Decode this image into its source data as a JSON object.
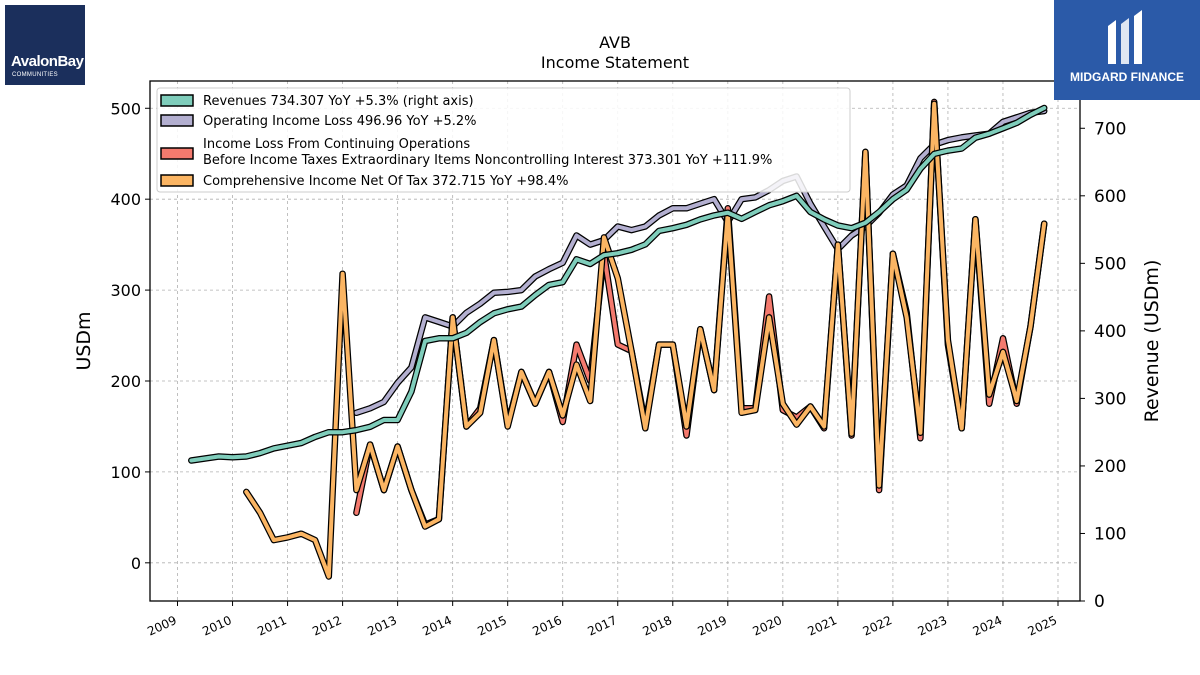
{
  "logos": {
    "left_text": "AvalonBay",
    "left_sub": "COMMUNITIES",
    "right_text": "MIDGARD FINANCE"
  },
  "chart_data": {
    "type": "line",
    "title": "AVB",
    "subtitle": "Income Statement",
    "ylabel": "USDm",
    "ylabel_right": "Revenue (USDm)",
    "ylim": [
      -42,
      530
    ],
    "ylim_right": [
      0,
      770
    ],
    "yticks": [
      0,
      100,
      200,
      300,
      400,
      500
    ],
    "yticks_right": [
      0,
      100,
      200,
      300,
      400,
      500,
      600,
      700
    ],
    "xlim": [
      2008.5,
      2025.4
    ],
    "xticks": [
      "2009",
      "2010",
      "2011",
      "2012",
      "2013",
      "2014",
      "2015",
      "2016",
      "2017",
      "2018",
      "2019",
      "2020",
      "2021",
      "2022",
      "2023",
      "2024",
      "2025"
    ],
    "grid": true,
    "legend_position": "top-left",
    "colors": {
      "revenues": "#7fcdbb",
      "operating": "#b3afd0",
      "pretax": "#f47a6e",
      "comprehensive": "#fbb563"
    },
    "legend": [
      {
        "key": "revenues",
        "text": "Revenues  734.307 YoY +5.3% (right axis)"
      },
      {
        "key": "operating",
        "text": "Operating Income Loss  496.96 YoY +5.2%"
      },
      {
        "key": "pretax",
        "text": "Income Loss From Continuing Operations",
        "text2": "Before Income Taxes Extraordinary Items Noncontrolling Interest  373.301 YoY +111.9%"
      },
      {
        "key": "comprehensive",
        "text": "Comprehensive Income Net Of Tax  372.715 YoY +98.4%"
      }
    ],
    "series": [
      {
        "key": "operating",
        "axis": "left",
        "x": [
          2012.25,
          2012.5,
          2012.75,
          2013.0,
          2013.25,
          2013.5,
          2013.75,
          2014.0,
          2014.25,
          2014.5,
          2014.75,
          2015.0,
          2015.25,
          2015.5,
          2015.75,
          2016.0,
          2016.25,
          2016.5,
          2016.75,
          2017.0,
          2017.25,
          2017.5,
          2017.75,
          2018.0,
          2018.25,
          2018.5,
          2018.75,
          2019.0,
          2019.25,
          2019.5,
          2019.75,
          2020.0,
          2020.25,
          2020.5,
          2020.75,
          2021.0,
          2021.25,
          2021.5,
          2021.75,
          2022.0,
          2022.25,
          2022.5,
          2022.75,
          2023.0,
          2023.25,
          2023.5,
          2023.75,
          2024.0,
          2024.25,
          2024.5,
          2024.75
        ],
        "y": [
          165,
          170,
          177,
          198,
          215,
          270,
          265,
          260,
          275,
          285,
          297,
          298,
          300,
          315,
          323,
          330,
          360,
          350,
          355,
          370,
          366,
          370,
          382,
          390,
          390,
          395,
          400,
          375,
          400,
          402,
          410,
          420,
          425,
          395,
          370,
          345,
          360,
          370,
          385,
          405,
          415,
          445,
          460,
          465,
          468,
          470,
          472,
          485,
          490,
          495,
          497
        ]
      },
      {
        "key": "pretax",
        "axis": "left",
        "x": [
          2012.25,
          2012.5,
          2012.75,
          2013.0,
          2013.25,
          2013.5,
          2013.75,
          2014.0,
          2014.25,
          2014.5,
          2014.75,
          2015.0,
          2015.25,
          2015.5,
          2015.75,
          2016.0,
          2016.25,
          2016.5,
          2016.75,
          2017.0,
          2017.25,
          2017.5,
          2017.75,
          2018.0,
          2018.25,
          2018.5,
          2018.75,
          2019.0,
          2019.25,
          2019.5,
          2019.75,
          2020.0,
          2020.25,
          2020.5,
          2020.75,
          2021.0,
          2021.25,
          2021.5,
          2021.75,
          2022.0,
          2022.25,
          2022.5,
          2022.75,
          2023.0,
          2023.25,
          2023.5,
          2023.75,
          2024.0,
          2024.25,
          2024.5,
          2024.75
        ],
        "y": [
          55,
          130,
          80,
          128,
          80,
          42,
          48,
          270,
          150,
          170,
          245,
          152,
          210,
          175,
          210,
          155,
          240,
          200,
          340,
          240,
          233,
          152,
          240,
          240,
          140,
          257,
          190,
          390,
          170,
          170,
          293,
          168,
          160,
          172,
          148,
          350,
          140,
          452,
          80,
          340,
          275,
          137,
          507,
          240,
          148,
          378,
          175,
          247,
          175,
          260,
          373
        ]
      },
      {
        "key": "comprehensive",
        "axis": "left",
        "x": [
          2010.25,
          2010.5,
          2010.75,
          2011.0,
          2011.25,
          2011.5,
          2011.75,
          2012.0,
          2012.25,
          2012.5,
          2012.75,
          2013.0,
          2013.25,
          2013.5,
          2013.75,
          2014.0,
          2014.25,
          2014.5,
          2014.75,
          2015.0,
          2015.25,
          2015.5,
          2015.75,
          2016.0,
          2016.25,
          2016.5,
          2016.75,
          2017.0,
          2017.25,
          2017.5,
          2017.75,
          2018.0,
          2018.25,
          2018.5,
          2018.75,
          2019.0,
          2019.25,
          2019.5,
          2019.75,
          2020.0,
          2020.25,
          2020.5,
          2020.75,
          2021.0,
          2021.25,
          2021.5,
          2021.75,
          2022.0,
          2022.25,
          2022.5,
          2022.75,
          2023.0,
          2023.25,
          2023.5,
          2023.75,
          2024.0,
          2024.25,
          2024.5,
          2024.75
        ],
        "y": [
          78,
          55,
          25,
          28,
          32,
          25,
          -15,
          318,
          80,
          130,
          80,
          128,
          80,
          40,
          48,
          270,
          150,
          165,
          245,
          150,
          210,
          175,
          210,
          162,
          218,
          178,
          358,
          313,
          233,
          148,
          240,
          240,
          150,
          257,
          190,
          385,
          165,
          168,
          270,
          175,
          152,
          172,
          150,
          350,
          142,
          452,
          85,
          340,
          270,
          143,
          505,
          245,
          148,
          378,
          185,
          232,
          178,
          260,
          373
        ]
      },
      {
        "key": "revenues",
        "axis": "right",
        "x": [
          2009.25,
          2009.5,
          2009.75,
          2010.0,
          2010.25,
          2010.5,
          2010.75,
          2011.0,
          2011.25,
          2011.5,
          2011.75,
          2012.0,
          2012.25,
          2012.5,
          2012.75,
          2013.0,
          2013.25,
          2013.5,
          2013.75,
          2014.0,
          2014.25,
          2014.5,
          2014.75,
          2015.0,
          2015.25,
          2015.5,
          2015.75,
          2016.0,
          2016.25,
          2016.5,
          2016.75,
          2017.0,
          2017.25,
          2017.5,
          2017.75,
          2018.0,
          2018.25,
          2018.5,
          2018.75,
          2019.0,
          2019.25,
          2019.5,
          2019.75,
          2020.0,
          2020.25,
          2020.5,
          2020.75,
          2021.0,
          2021.25,
          2021.5,
          2021.75,
          2022.0,
          2022.25,
          2022.5,
          2022.75,
          2023.0,
          2023.25,
          2023.5,
          2023.75,
          2024.0,
          2024.25,
          2024.5,
          2024.75
        ],
        "y": [
          208,
          211,
          214,
          213,
          214,
          219,
          226,
          230,
          234,
          243,
          250,
          250,
          253,
          258,
          268,
          268,
          310,
          385,
          389,
          389,
          397,
          413,
          426,
          432,
          436,
          453,
          468,
          472,
          506,
          499,
          512,
          515,
          520,
          528,
          548,
          552,
          557,
          565,
          571,
          575,
          566,
          576,
          586,
          592,
          600,
          576,
          565,
          556,
          552,
          560,
          576,
          595,
          609,
          640,
          662,
          667,
          670,
          686,
          692,
          700,
          708,
          720,
          730
        ]
      }
    ]
  }
}
